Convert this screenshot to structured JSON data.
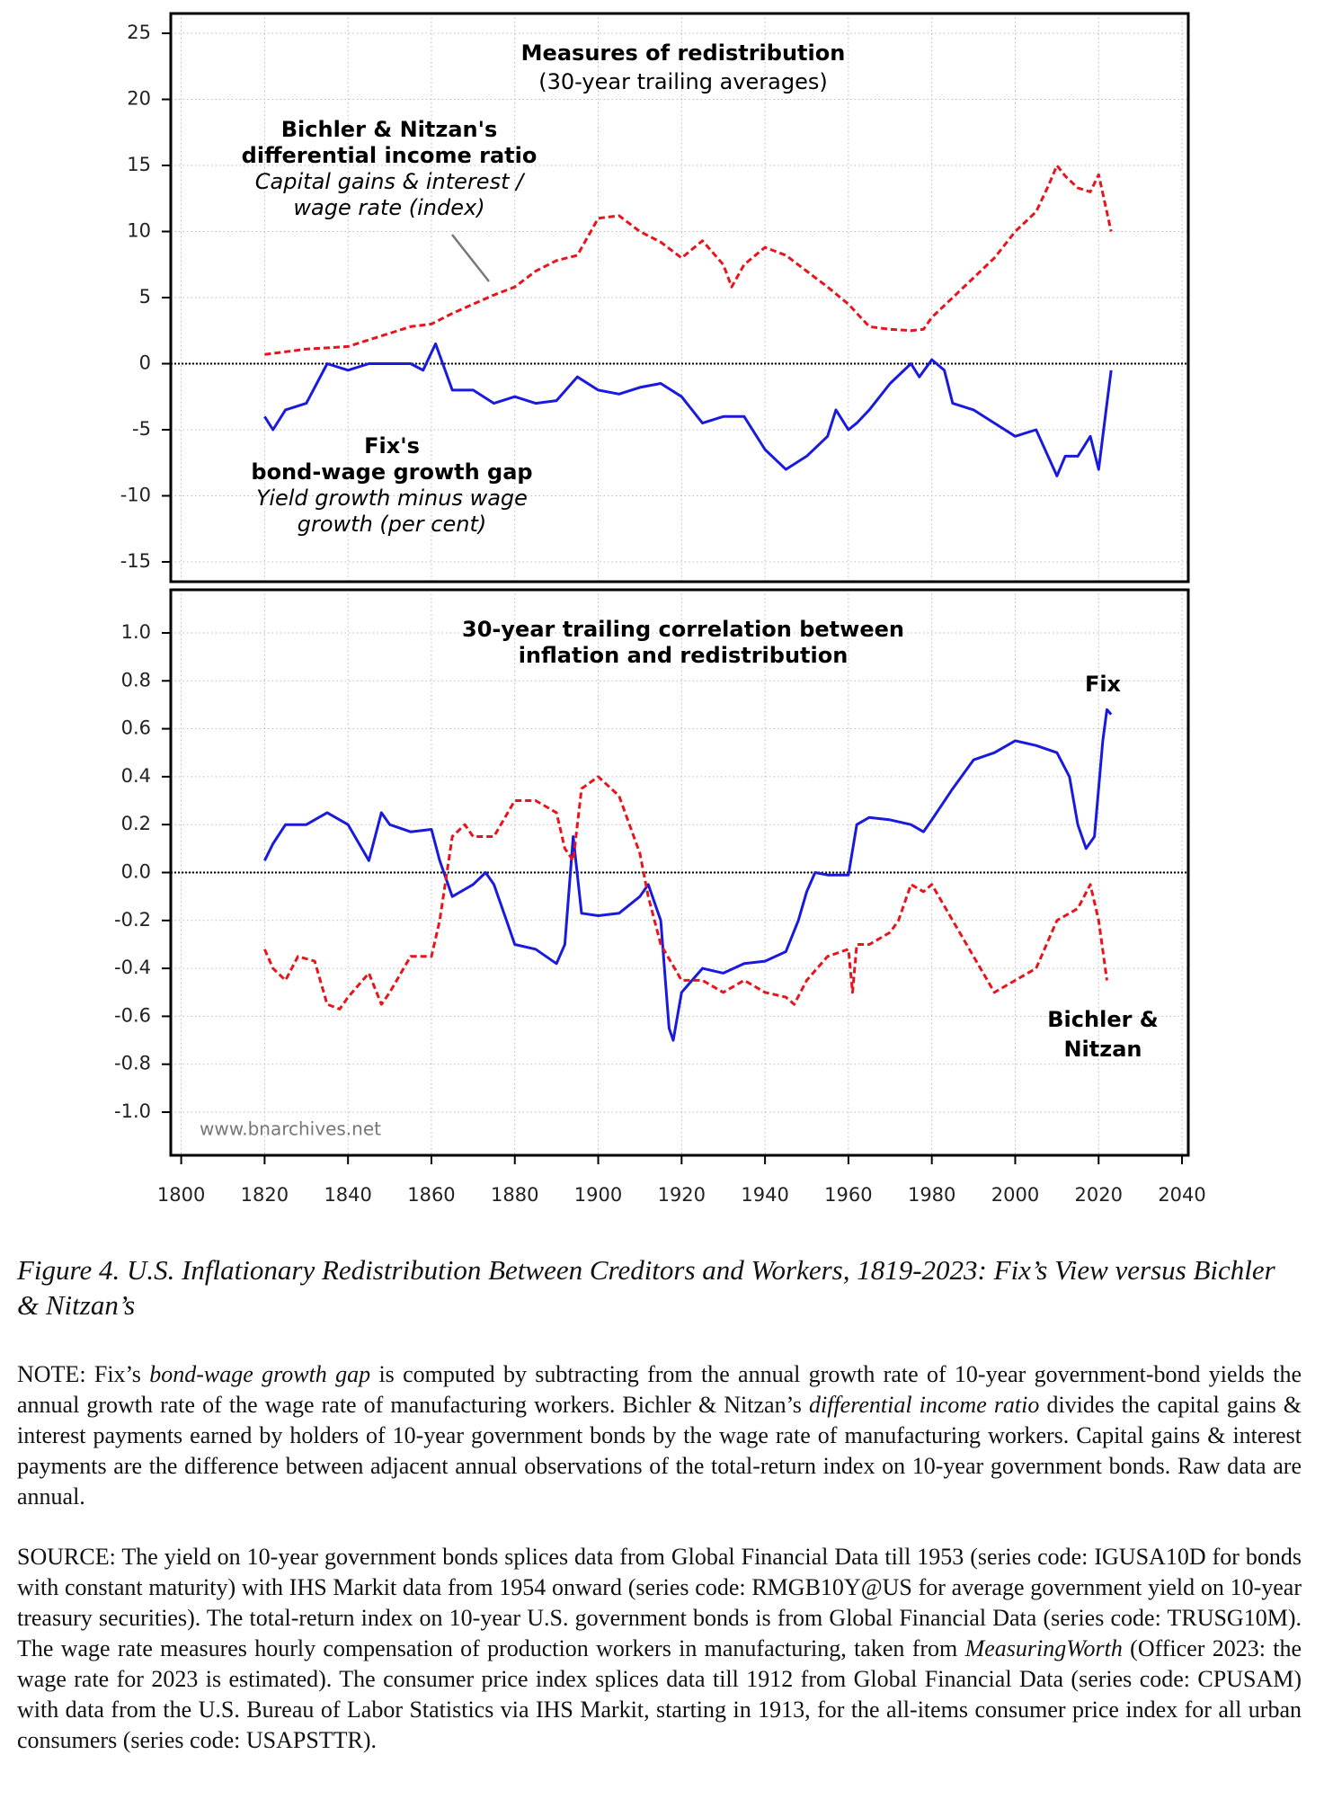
{
  "chart_data": [
    {
      "type": "line",
      "title": "Measures of redistribution",
      "subtitle": "(30-year trailing averages)",
      "xlim": [
        1797.5,
        2041.5
      ],
      "ylim": [
        -16.5,
        26.5
      ],
      "yticks": [
        25,
        20,
        15,
        10,
        5,
        0,
        -5,
        -10,
        -15
      ],
      "grid": true,
      "zero_line": true,
      "annotations": [
        {
          "lines": [
            "Bichler & Nitzan's",
            "differential income ratio",
            "Capital gains & interest /",
            "wage rate (index)"
          ]
        },
        {
          "lines": [
            "Fix's",
            "bond-wage growth gap",
            "Yield growth minus wage",
            "growth (per cent)"
          ]
        }
      ],
      "series": [
        {
          "color": "#e8141c",
          "dash": true,
          "x": [
            1820,
            1825,
            1830,
            1835,
            1840,
            1845,
            1850,
            1855,
            1860,
            1865,
            1870,
            1875,
            1880,
            1885,
            1890,
            1895,
            1900,
            1905,
            1910,
            1915,
            1920,
            1925,
            1930,
            1932,
            1935,
            1940,
            1945,
            1950,
            1955,
            1960,
            1965,
            1970,
            1975,
            1978,
            1980,
            1985,
            1990,
            1995,
            2000,
            2005,
            2008,
            2010,
            2012,
            2015,
            2018,
            2020,
            2023
          ],
          "values": [
            0.7,
            0.9,
            1.1,
            1.2,
            1.3,
            1.8,
            2.3,
            2.8,
            3.0,
            3.8,
            4.5,
            5.2,
            5.8,
            7.0,
            7.8,
            8.2,
            11.0,
            11.2,
            10.0,
            9.2,
            8.0,
            9.3,
            7.5,
            5.8,
            7.5,
            8.8,
            8.2,
            7.0,
            5.8,
            4.5,
            2.8,
            2.6,
            2.5,
            2.6,
            3.5,
            5.0,
            6.5,
            8.0,
            10.0,
            11.5,
            13.5,
            15.0,
            14.2,
            13.3,
            13.0,
            14.3,
            10.0
          ]
        },
        {
          "color": "#1a1adf",
          "dash": false,
          "x": [
            1820,
            1822,
            1825,
            1830,
            1835,
            1840,
            1845,
            1850,
            1855,
            1858,
            1861,
            1865,
            1870,
            1875,
            1880,
            1885,
            1890,
            1895,
            1900,
            1905,
            1910,
            1915,
            1920,
            1925,
            1930,
            1935,
            1940,
            1945,
            1950,
            1955,
            1957,
            1960,
            1962,
            1965,
            1970,
            1975,
            1977,
            1980,
            1983,
            1985,
            1990,
            1995,
            2000,
            2005,
            2010,
            2012,
            2015,
            2018,
            2020,
            2022,
            2023
          ],
          "values": [
            -4,
            -5,
            -3.5,
            -3,
            0,
            -0.5,
            0,
            0,
            0,
            -0.5,
            1.5,
            -2,
            -2,
            -3,
            -2.5,
            -3,
            -2.8,
            -1,
            -2,
            -2.3,
            -1.8,
            -1.5,
            -2.5,
            -4.5,
            -4,
            -4,
            -6.5,
            -8,
            -7,
            -5.5,
            -3.5,
            -5,
            -4.5,
            -3.5,
            -1.5,
            0,
            -1,
            0.3,
            -0.5,
            -3,
            -3.5,
            -4.5,
            -5.5,
            -5,
            -8.5,
            -7,
            -7,
            -5.5,
            -8,
            -3,
            -0.5
          ]
        }
      ]
    },
    {
      "type": "line",
      "title": [
        "30-year trailing correlation between",
        "inflation and redistribution"
      ],
      "xlim": [
        1797.5,
        2041.5
      ],
      "xticks": [
        1800,
        1820,
        1840,
        1860,
        1880,
        1900,
        1920,
        1940,
        1960,
        1980,
        2000,
        2020,
        2040
      ],
      "ylim": [
        -1.18,
        1.18
      ],
      "yticks": [
        {
          "value": 1,
          "label": "1.0"
        },
        0.8,
        0.6,
        0.4,
        0.2,
        {
          "value": 0,
          "label": "0.0"
        },
        -0.2,
        -0.4,
        -0.6,
        -0.8,
        {
          "value": -1,
          "label": "-1.0"
        }
      ],
      "grid": true,
      "zero_line": true,
      "watermark": "www.bnarchives.net",
      "annotations": [
        {
          "lines": [
            "Fix"
          ]
        },
        {
          "lines": [
            "Bichler &",
            "Nitzan"
          ]
        }
      ],
      "series": [
        {
          "color": "#1a1adf",
          "dash": false,
          "x": [
            1820,
            1822,
            1825,
            1830,
            1835,
            1840,
            1845,
            1848,
            1850,
            1855,
            1860,
            1862,
            1865,
            1870,
            1873,
            1875,
            1878,
            1880,
            1885,
            1890,
            1892,
            1894,
            1896,
            1900,
            1905,
            1910,
            1912,
            1915,
            1917,
            1918,
            1920,
            1925,
            1930,
            1935,
            1940,
            1945,
            1948,
            1950,
            1952,
            1955,
            1960,
            1962,
            1965,
            1970,
            1975,
            1978,
            1980,
            1985,
            1990,
            1995,
            2000,
            2005,
            2010,
            2013,
            2015,
            2017,
            2019,
            2021,
            2022,
            2023
          ],
          "values": [
            0.05,
            0.12,
            0.2,
            0.2,
            0.25,
            0.2,
            0.05,
            0.25,
            0.2,
            0.17,
            0.18,
            0.05,
            -0.1,
            -0.05,
            0.0,
            -0.05,
            -0.2,
            -0.3,
            -0.32,
            -0.38,
            -0.3,
            0.15,
            -0.17,
            -0.18,
            -0.17,
            -0.1,
            -0.05,
            -0.2,
            -0.65,
            -0.7,
            -0.5,
            -0.4,
            -0.42,
            -0.38,
            -0.37,
            -0.33,
            -0.2,
            -0.08,
            0,
            -0.01,
            -0.01,
            0.2,
            0.23,
            0.22,
            0.2,
            0.17,
            0.22,
            0.35,
            0.47,
            0.5,
            0.55,
            0.53,
            0.5,
            0.4,
            0.2,
            0.1,
            0.15,
            0.55,
            0.68,
            0.66
          ]
        },
        {
          "color": "#e8141c",
          "dash": true,
          "x": [
            1820,
            1822,
            1825,
            1828,
            1832,
            1835,
            1838,
            1840,
            1845,
            1848,
            1850,
            1855,
            1860,
            1862,
            1865,
            1868,
            1870,
            1875,
            1880,
            1885,
            1890,
            1892,
            1894,
            1896,
            1900,
            1905,
            1910,
            1912,
            1915,
            1920,
            1925,
            1930,
            1935,
            1940,
            1945,
            1947,
            1950,
            1955,
            1960,
            1961,
            1962,
            1965,
            1970,
            1972,
            1975,
            1978,
            1980,
            1985,
            1990,
            1995,
            2000,
            2005,
            2010,
            2015,
            2018,
            2020,
            2022
          ],
          "values": [
            -0.32,
            -0.4,
            -0.45,
            -0.35,
            -0.37,
            -0.55,
            -0.57,
            -0.52,
            -0.42,
            -0.55,
            -0.5,
            -0.35,
            -0.35,
            -0.2,
            0.15,
            0.2,
            0.15,
            0.15,
            0.3,
            0.3,
            0.25,
            0.1,
            0.05,
            0.35,
            0.4,
            0.32,
            0.08,
            -0.1,
            -0.3,
            -0.45,
            -0.45,
            -0.5,
            -0.45,
            -0.5,
            -0.52,
            -0.55,
            -0.45,
            -0.35,
            -0.32,
            -0.5,
            -0.3,
            -0.3,
            -0.25,
            -0.2,
            -0.05,
            -0.08,
            -0.05,
            -0.2,
            -0.35,
            -0.5,
            -0.45,
            -0.4,
            -0.2,
            -0.15,
            -0.05,
            -0.2,
            -0.45
          ]
        }
      ]
    }
  ],
  "caption": "Figure 4. U.S. Inflationary Redistribution Between Creditors and Workers, 1819-2023: Fix’s View versus Bichler & Nitzan’s",
  "note": [
    "NOTE: Fix’s ",
    "bond-wage growth gap",
    " is computed by subtracting from the annual growth rate of 10-year government-bond yields the annual growth rate of the wage rate of manufacturing workers. Bichler & Nitzan’s ",
    "differential income ratio",
    " divides the capital gains & interest payments earned by holders of 10-year government bonds by the wage rate of manufacturing workers. Capital gains & interest payments are the difference between adjacent annual observations of the total-return index on 10-year government bonds. Raw data are annual."
  ],
  "source": [
    "SOURCE: The yield on 10-year government bonds splices data from Global Financial Data till 1953 (series code: IGUSA10D for bonds with constant maturity) with IHS Markit data from 1954 onward (series code: RMGB10Y@US for average government yield on 10-year treasury securities). The total-return index on 10-year U.S. government bonds is from Global Financial Data (series code: TRUSG10M). The wage rate measures hourly compensation of production workers in manufacturing, taken from ",
    "MeasuringWorth",
    " (Officer 2023: the wage rate for 2023 is estimated). The consumer price index splices data till 1912 from Global Financial Data (series code: CPUSAM) with data from the U.S. Bureau of Labor Statistics via IHS Markit, starting in 1913, for the all-items consumer price index for all urban consumers (series code: USAPSTTR)."
  ]
}
